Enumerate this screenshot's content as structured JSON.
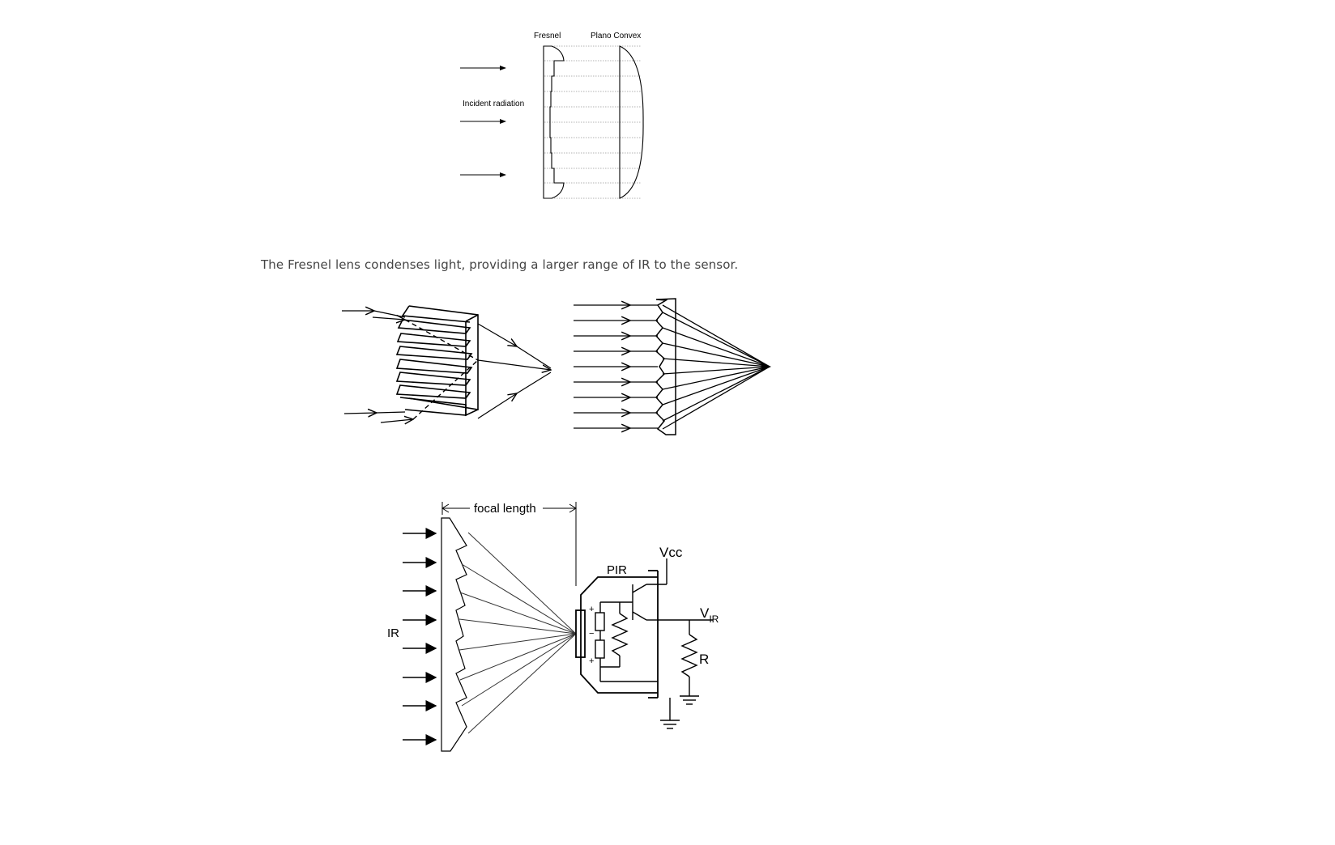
{
  "diagram1": {
    "label_fresnel": "Fresnel",
    "label_plano_convex": "Plano Convex",
    "label_incident": "Incident radiation"
  },
  "caption": "The Fresnel lens condenses light, providing a larger range of IR to the sensor.",
  "diagram3": {
    "label_focal_length": "focal length",
    "label_ir": "IR",
    "label_pir": "PIR",
    "label_vcc": "Vcc",
    "label_v": "V",
    "label_v_sub": "IR",
    "label_r": "R",
    "label_plus_top": "+",
    "label_minus": "−",
    "label_plus_bottom": "+"
  }
}
